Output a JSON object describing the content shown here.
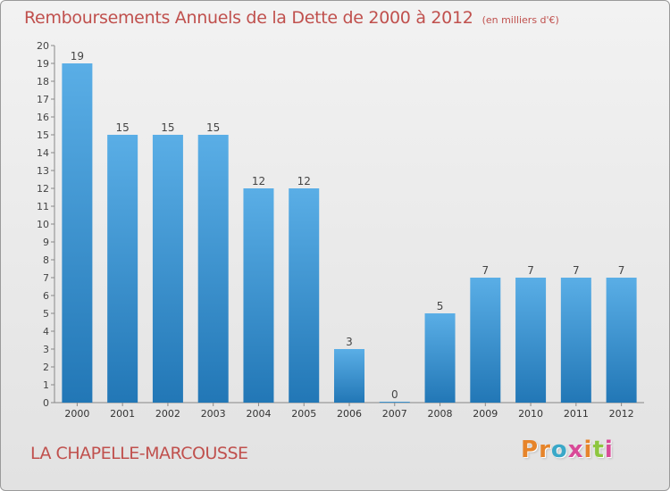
{
  "header": {
    "title": "Remboursements Annuels de la Dette de 2000 à 2012",
    "unit": "(en milliers d'€)"
  },
  "footer": {
    "commune": "LA CHAPELLE-MARCOUSSE",
    "logo": "Proxiti"
  },
  "colors": {
    "title": "#c0504d",
    "bar_top": "#5aaee6",
    "bar_bottom": "#2277b6",
    "logo_letters": [
      "#e6842a",
      "#e6842a",
      "#3aa8c8",
      "#d94a98",
      "#e6842a",
      "#8dc63f",
      "#d94a98"
    ]
  },
  "chart_data": {
    "type": "bar",
    "title": "Remboursements Annuels de la Dette de 2000 à 2012",
    "subtitle": "(en milliers d'€)",
    "xlabel": "",
    "ylabel": "",
    "categories": [
      "2000",
      "2001",
      "2002",
      "2003",
      "2004",
      "2005",
      "2006",
      "2007",
      "2008",
      "2009",
      "2010",
      "2011",
      "2012"
    ],
    "values": [
      19,
      15,
      15,
      15,
      12,
      12,
      3,
      0,
      5,
      7,
      7,
      7,
      7
    ],
    "data_labels": [
      "19",
      "15",
      "15",
      "15",
      "12",
      "12",
      "3",
      "0",
      "5",
      "7",
      "7",
      "7",
      "7"
    ],
    "ylim": [
      0,
      20
    ],
    "yticks": [
      0,
      1,
      2,
      3,
      4,
      5,
      6,
      7,
      8,
      9,
      10,
      11,
      12,
      13,
      14,
      15,
      16,
      17,
      18,
      19,
      20
    ],
    "grid": false,
    "legend": "none"
  }
}
